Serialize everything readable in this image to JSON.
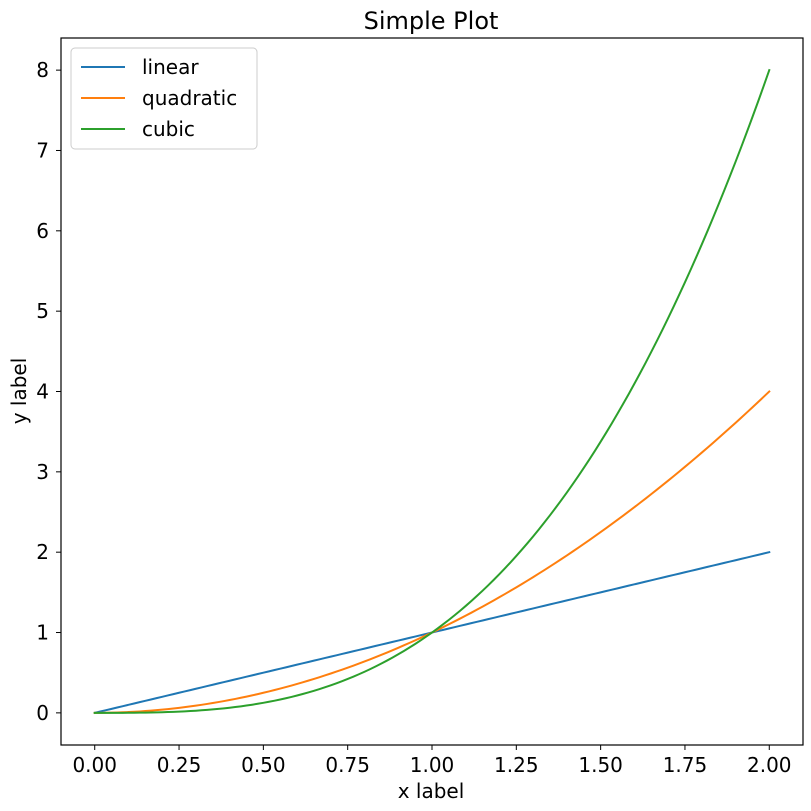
{
  "chart_data": {
    "type": "line",
    "title": "Simple Plot",
    "xlabel": "x label",
    "ylabel": "y label",
    "xlim": [
      -0.1,
      2.1
    ],
    "ylim": [
      -0.4,
      8.4
    ],
    "xticks": [
      0,
      0.25,
      0.5,
      0.75,
      1,
      1.25,
      1.5,
      1.75,
      2
    ],
    "xtick_labels": [
      "0.00",
      "0.25",
      "0.50",
      "0.75",
      "1.00",
      "1.25",
      "1.50",
      "1.75",
      "2.00"
    ],
    "yticks": [
      0,
      1,
      2,
      3,
      4,
      5,
      6,
      7,
      8
    ],
    "ytick_labels": [
      "0",
      "1",
      "2",
      "3",
      "4",
      "5",
      "6",
      "7",
      "8"
    ],
    "grid": false,
    "legend_position": "top-left",
    "x": [
      0,
      0.1,
      0.2,
      0.3,
      0.4,
      0.5,
      0.6,
      0.7,
      0.8,
      0.9,
      1.0,
      1.1,
      1.2,
      1.3,
      1.4,
      1.5,
      1.6,
      1.7,
      1.8,
      1.9,
      2.0
    ],
    "series": [
      {
        "name": "linear",
        "color": "#1f77b4",
        "values": [
          0,
          0.1,
          0.2,
          0.3,
          0.4,
          0.5,
          0.6,
          0.7,
          0.8,
          0.9,
          1.0,
          1.1,
          1.2,
          1.3,
          1.4,
          1.5,
          1.6,
          1.7,
          1.8,
          1.9,
          2.0
        ]
      },
      {
        "name": "quadratic",
        "color": "#ff7f0e",
        "values": [
          0,
          0.01,
          0.04,
          0.09,
          0.16,
          0.25,
          0.36,
          0.49,
          0.64,
          0.81,
          1.0,
          1.21,
          1.44,
          1.69,
          1.96,
          2.25,
          2.56,
          2.89,
          3.24,
          3.61,
          4.0
        ]
      },
      {
        "name": "cubic",
        "color": "#2ca02c",
        "values": [
          0,
          0.001,
          0.008,
          0.027,
          0.064,
          0.125,
          0.216,
          0.343,
          0.512,
          0.729,
          1.0,
          1.331,
          1.728,
          2.197,
          2.744,
          3.375,
          4.096,
          4.913,
          5.832,
          6.859,
          8.0
        ]
      }
    ]
  }
}
